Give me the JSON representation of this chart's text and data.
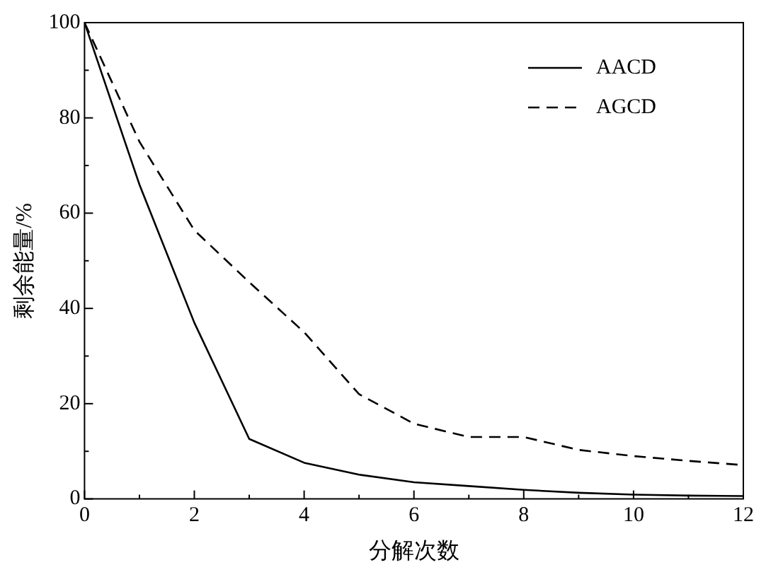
{
  "chart_data": {
    "type": "line",
    "xlabel": "分解次数",
    "ylabel": "剩余能量/%",
    "x": [
      0,
      1,
      2,
      3,
      4,
      5,
      6,
      7,
      8,
      9,
      10,
      11,
      12
    ],
    "series": [
      {
        "name": "AACD",
        "color": "#000000",
        "line_style": "solid",
        "values": [
          100,
          66,
          37,
          12.6,
          7.6,
          5.1,
          3.5,
          2.7,
          1.9,
          1.3,
          0.9,
          0.7,
          0.6
        ]
      },
      {
        "name": "AGCD",
        "color": "#000000",
        "line_style": "dashed",
        "values": [
          100,
          75,
          56.4,
          45.5,
          35,
          22,
          15.8,
          13,
          13,
          10.3,
          9,
          8,
          7.1
        ]
      }
    ],
    "xlim": [
      0,
      12
    ],
    "xticks": [
      0,
      {
        "value": 1,
        "label": null
      },
      2,
      {
        "value": 3,
        "label": null
      },
      4,
      {
        "value": 5,
        "label": null
      },
      6,
      {
        "value": 7,
        "label": null
      },
      8,
      {
        "value": 9,
        "label": null
      },
      10,
      {
        "value": 11,
        "label": null
      },
      12
    ],
    "ylim": [
      0,
      100
    ],
    "yticks": [
      0,
      {
        "value": 10,
        "label": null
      },
      20,
      {
        "value": 30,
        "label": null
      },
      40,
      {
        "value": 50,
        "label": null
      },
      60,
      {
        "value": 70,
        "label": null
      },
      80,
      {
        "value": 90,
        "label": null
      },
      100
    ],
    "grid": false,
    "legend": "top right",
    "marker": "none"
  }
}
